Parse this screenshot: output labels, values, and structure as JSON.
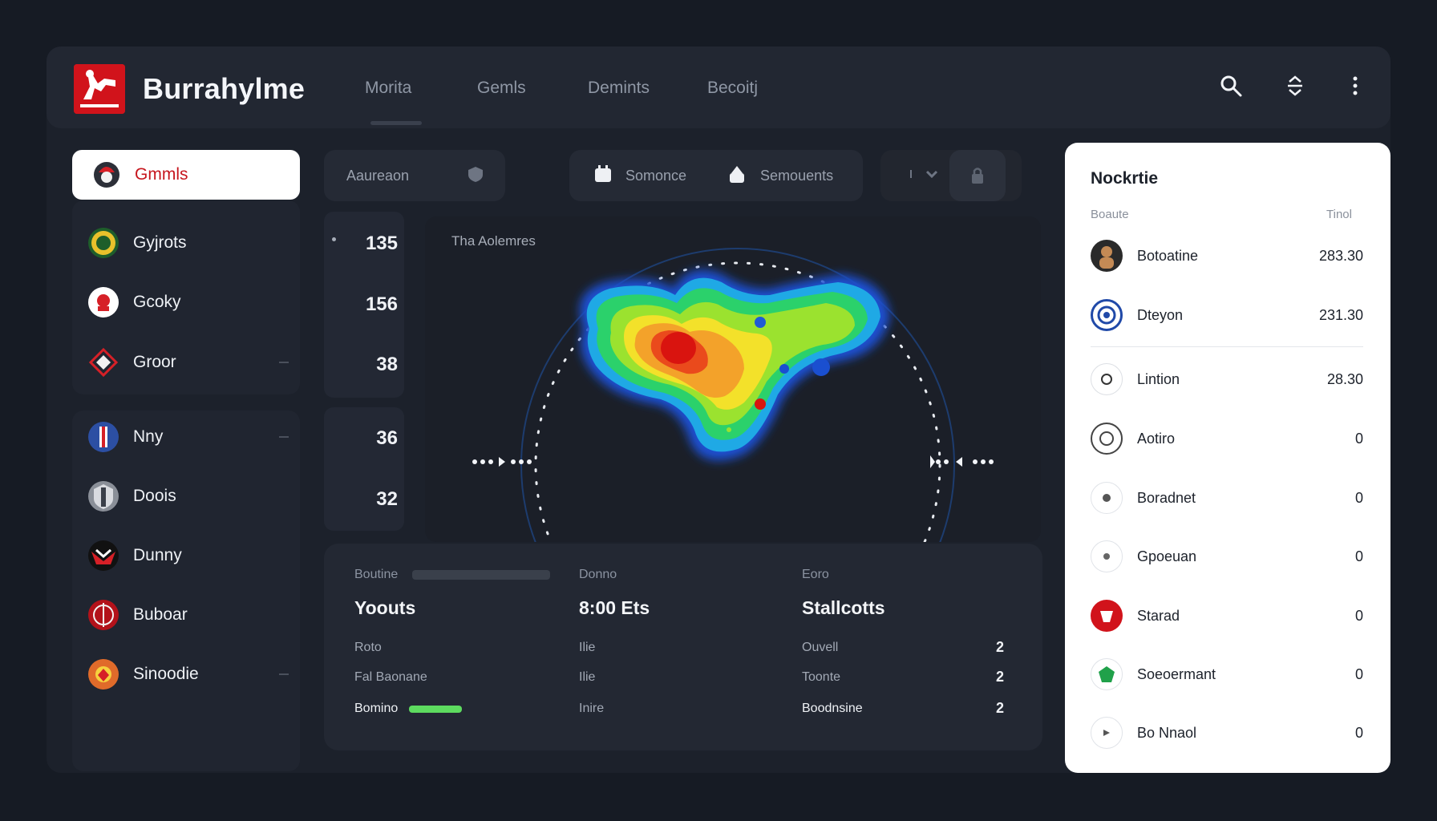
{
  "app": {
    "title": "Burrahylme"
  },
  "nav": {
    "tabs": [
      "Morita",
      "Gemls",
      "Demints",
      "Becoitj"
    ]
  },
  "sidebar": {
    "active_label": "Gmmls",
    "items": [
      {
        "label": "Gyjrots"
      },
      {
        "label": "Gcoky"
      },
      {
        "label": "Groor"
      },
      {
        "label": "Nny"
      },
      {
        "label": "Doois"
      },
      {
        "label": "Dunny"
      },
      {
        "label": "Buboar"
      },
      {
        "label": "Sinoodie"
      }
    ]
  },
  "filters": {
    "dropdown_label": "Aaureaon",
    "chip1_label": "Somonce",
    "chip2_label": "Semouents"
  },
  "stats": {
    "values": [
      "135",
      "156",
      "38",
      "36",
      "32"
    ]
  },
  "heatmap": {
    "label": "Tha Aolemres"
  },
  "bottom": {
    "columns": [
      {
        "head": "Boutine",
        "big": "Yoouts",
        "rows": [
          "Roto",
          "Fal Baonane",
          "Bomino"
        ]
      },
      {
        "head": "Donno",
        "big": "8:00 Ets",
        "rows": [
          "Ilie",
          "Ilie",
          "Inire"
        ]
      },
      {
        "head": "Eoro",
        "big": "Stallcotts",
        "rows": [
          "Ouvell",
          "Toonte",
          "Boodnsine"
        ],
        "values": [
          "2",
          "2",
          "2"
        ]
      }
    ],
    "progress": 0.72
  },
  "ranking": {
    "title": "Nockrtie",
    "col_left": "Boaute",
    "col_right": "Tinol",
    "rows": [
      {
        "name": "Botoatine",
        "value": "283.30"
      },
      {
        "name": "Dteyon",
        "value": "231.30"
      },
      {
        "name": "Lintion",
        "value": "28.30"
      },
      {
        "name": "Aotiro",
        "value": "0"
      },
      {
        "name": "Boradnet",
        "value": "0"
      },
      {
        "name": "Gpoeuan",
        "value": "0"
      },
      {
        "name": "Starad",
        "value": "0"
      },
      {
        "name": "Soeoermant",
        "value": "0"
      },
      {
        "name": "Bo Nnaol",
        "value": "0"
      }
    ]
  },
  "colors": {
    "accent_red": "#d1131b",
    "panel": "#222732",
    "bg": "#161b24",
    "progress": "#5ddb5f"
  }
}
